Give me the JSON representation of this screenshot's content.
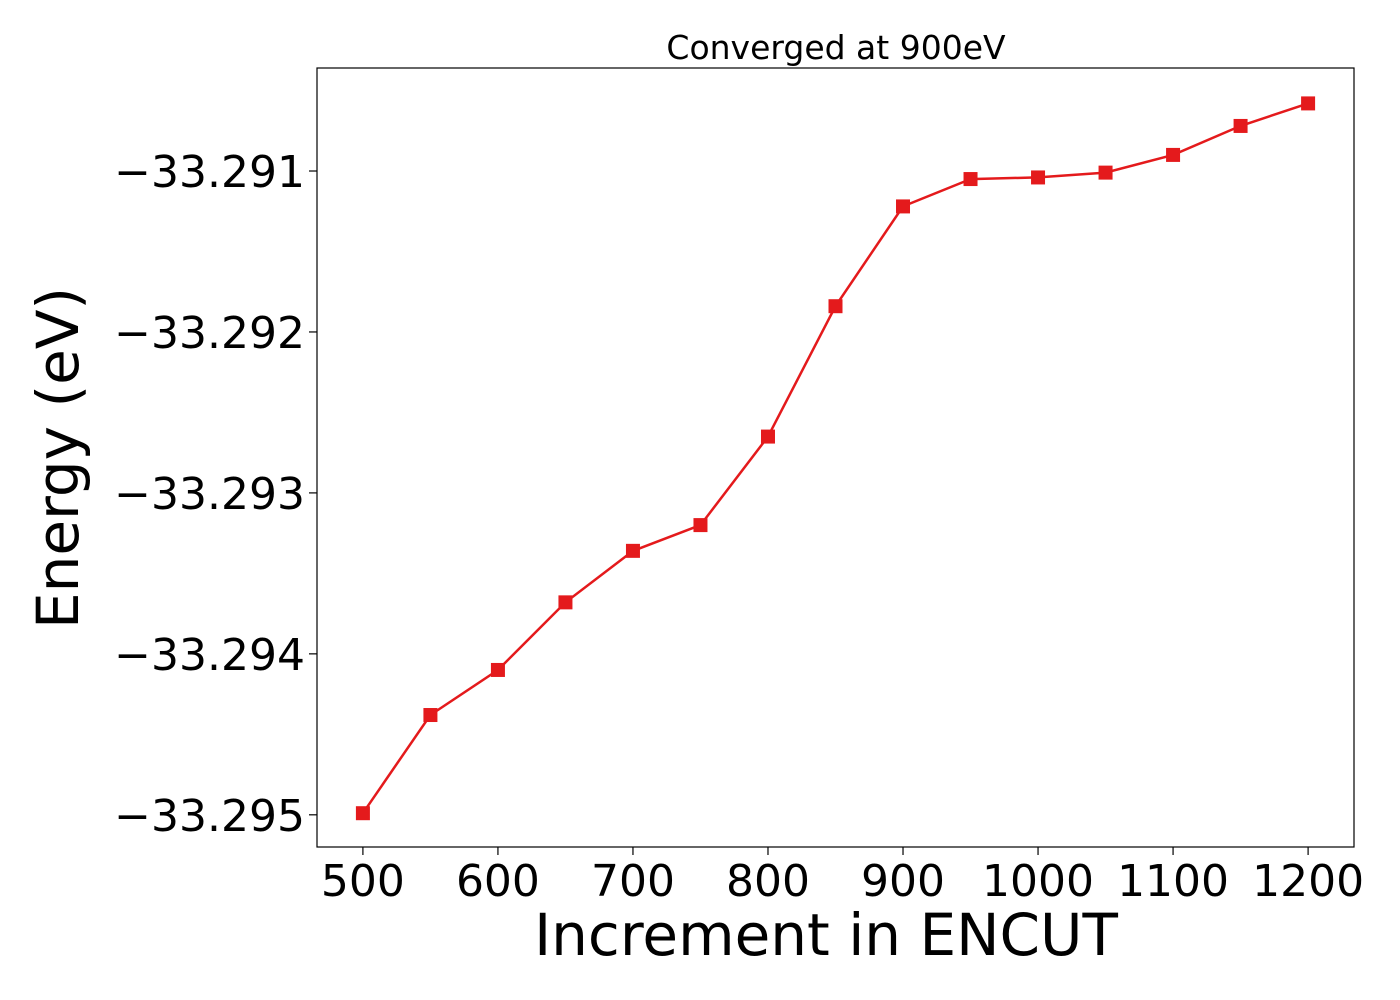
{
  "chart_data": {
    "type": "line",
    "title": "Converged at 900eV",
    "xlabel": "Increment in ENCUT",
    "ylabel": "Energy (eV)",
    "x": [
      500,
      550,
      600,
      650,
      700,
      750,
      800,
      850,
      900,
      950,
      1000,
      1050,
      1100,
      1150,
      1200
    ],
    "series": [
      {
        "values": [
          -33.29499,
          -33.29438,
          -33.2941,
          -33.29368,
          -33.29336,
          -33.2932,
          -33.29265,
          -33.29184,
          -33.29122,
          -33.29105,
          -33.29104,
          -33.29101,
          -33.2909,
          -33.29072,
          -33.29058
        ],
        "color": "#e41a1c",
        "marker": "square"
      }
    ],
    "xlim": [
      466,
      1234
    ],
    "ylim": [
      -33.2952,
      -33.29036
    ],
    "x_ticks": [
      500,
      600,
      700,
      800,
      900,
      1000,
      1100,
      1200
    ],
    "x_tick_labels": [
      "500",
      "600",
      "700",
      "800",
      "900",
      "1000",
      "1100",
      "1200"
    ],
    "y_ticks": [
      -33.295,
      -33.294,
      -33.293,
      -33.292,
      -33.291
    ],
    "y_tick_labels": [
      "−33.295",
      "−33.294",
      "−33.293",
      "−33.292",
      "−33.291"
    ],
    "grid": false,
    "legend": "none"
  }
}
